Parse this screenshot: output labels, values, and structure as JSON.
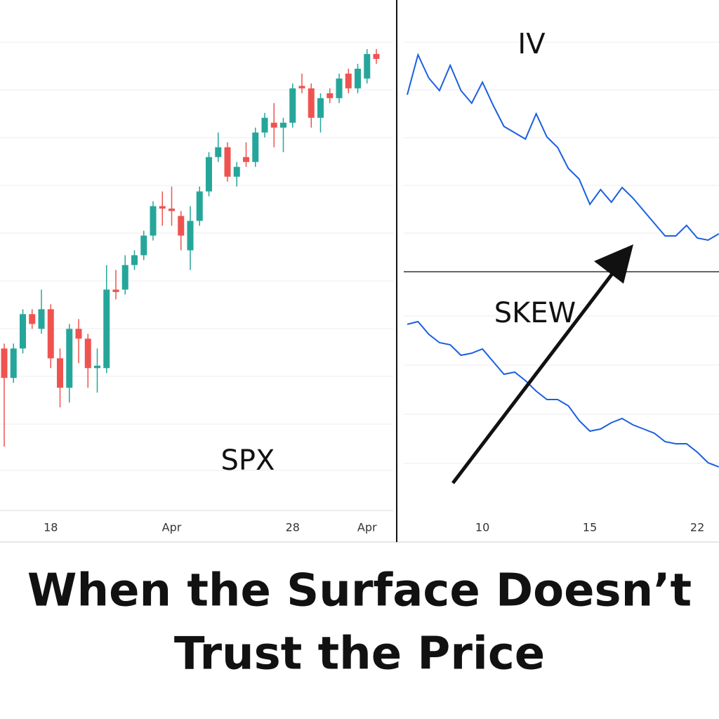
{
  "chart_data": [
    {
      "type": "candlestick",
      "title": "SPX",
      "categories": [
        null,
        null,
        null,
        null,
        null,
        "18",
        null,
        null,
        null,
        null,
        null,
        null,
        null,
        null,
        null,
        null,
        null,
        null,
        "Apr",
        null,
        null,
        null,
        null,
        null,
        null,
        null,
        null,
        null,
        null,
        null,
        null,
        "28",
        null,
        null,
        null,
        null,
        null,
        null,
        null,
        "Apr",
        null
      ],
      "open": [
        33,
        27,
        33,
        40,
        37,
        41,
        31,
        25,
        37,
        35,
        29,
        29,
        45,
        45,
        50,
        52,
        56,
        62,
        61.5,
        60,
        53,
        59,
        65,
        72,
        74,
        68,
        72,
        71,
        77,
        79,
        78,
        79,
        86.5,
        86,
        80,
        85,
        84,
        89,
        86,
        88,
        93
      ],
      "high": [
        34,
        34,
        41,
        41,
        45,
        42,
        33,
        38,
        39,
        36,
        33,
        50,
        49,
        52,
        53,
        57,
        63,
        65,
        66,
        61,
        62,
        66,
        73,
        77,
        75,
        71,
        75,
        78,
        81,
        83,
        80,
        87,
        89,
        87,
        85,
        86,
        89,
        90,
        91,
        94,
        94
      ],
      "low": [
        13,
        26,
        32,
        37,
        36,
        29,
        21,
        22,
        30,
        25,
        24,
        28,
        43,
        44,
        49,
        51,
        55,
        58,
        58,
        53,
        49,
        58,
        64,
        71,
        67,
        66,
        70,
        70,
        76,
        74,
        73,
        78,
        85,
        78,
        77,
        83,
        83,
        85,
        85,
        87,
        91
      ],
      "close": [
        27,
        33,
        40,
        38,
        41,
        31,
        25,
        37,
        35,
        29,
        29.5,
        45,
        44.5,
        50,
        52,
        56,
        62,
        61.5,
        61,
        56,
        59,
        65,
        72,
        74,
        68,
        70,
        71,
        77,
        80,
        78,
        79,
        86,
        86,
        80,
        84,
        84,
        88,
        86,
        90,
        93,
        92
      ],
      "up_color": "#26a69a",
      "down_color": "#ef5350",
      "ylim": [
        0,
        104
      ]
    },
    {
      "type": "line",
      "title": "IV",
      "color": "#1a5fe0",
      "categories": [
        null,
        null,
        null,
        null,
        null,
        null,
        null,
        null,
        null,
        null,
        null,
        null,
        null,
        null,
        null,
        null,
        null,
        null,
        null,
        null,
        null,
        null,
        null,
        null,
        null,
        null,
        null,
        null,
        null,
        null
      ],
      "values": [
        84,
        103,
        92,
        86,
        98,
        86,
        80,
        90,
        79,
        69,
        66,
        63,
        75,
        64,
        59,
        49,
        44,
        32,
        39,
        33,
        40,
        35,
        29,
        23,
        17,
        17,
        22,
        16,
        15,
        18
      ],
      "ylim": [
        0,
        129
      ]
    },
    {
      "type": "line",
      "title": "SKEW",
      "color": "#1a5fe0",
      "categories": [
        null,
        null,
        null,
        null,
        null,
        null,
        null,
        "10",
        null,
        null,
        null,
        null,
        null,
        null,
        null,
        null,
        null,
        "15",
        null,
        null,
        null,
        null,
        null,
        null,
        null,
        null,
        null,
        "22",
        null,
        null
      ],
      "values": [
        102.7,
        104,
        98,
        94,
        93,
        88,
        89,
        91,
        85,
        79,
        80,
        76,
        71,
        67,
        67,
        64,
        57,
        52,
        53,
        56,
        58,
        55,
        53,
        51,
        47,
        46,
        46,
        42,
        37,
        35
      ],
      "ylim": [
        0,
        128
      ]
    }
  ],
  "headline_lines": [
    "When the Surface Doesn’t",
    "Trust the Price"
  ]
}
